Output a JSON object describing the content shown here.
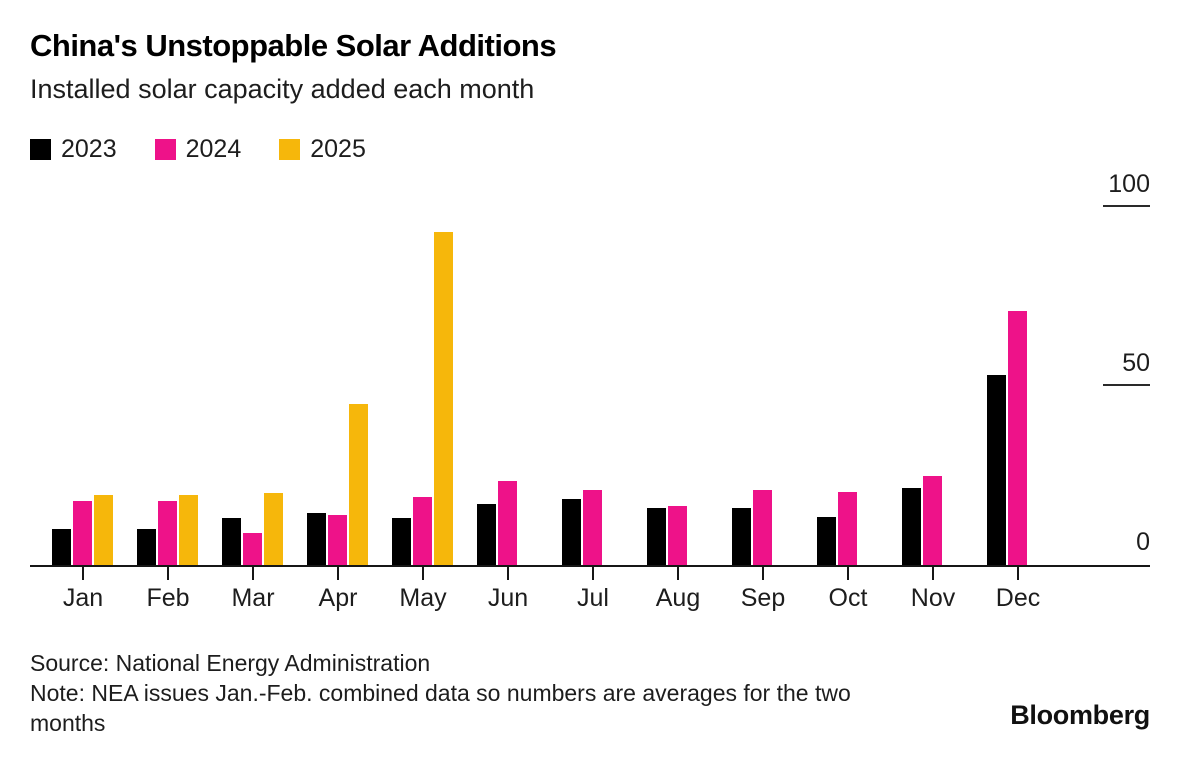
{
  "header": {
    "title": "China's Unstoppable Solar Additions",
    "subtitle": "Installed solar capacity added each month"
  },
  "legend": [
    {
      "label": "2023",
      "color": "#000000"
    },
    {
      "label": "2024",
      "color": "#ee1289"
    },
    {
      "label": "2025",
      "color": "#f6b70b"
    }
  ],
  "chart_data": {
    "type": "bar",
    "title": "China's Unstoppable Solar Additions",
    "subtitle": "Installed solar capacity added each month",
    "categories": [
      "Jan",
      "Feb",
      "Mar",
      "Apr",
      "May",
      "Jun",
      "Jul",
      "Aug",
      "Sep",
      "Oct",
      "Nov",
      "Dec"
    ],
    "series": [
      {
        "name": "2023",
        "color": "#000000",
        "values": [
          10,
          10,
          13,
          14.5,
          13,
          17,
          18.5,
          16,
          16,
          13.5,
          21.5,
          53
        ]
      },
      {
        "name": "2024",
        "color": "#ee1289",
        "values": [
          18,
          18,
          9,
          14,
          19,
          23.5,
          21,
          16.5,
          21,
          20.5,
          25,
          71
        ]
      },
      {
        "name": "2025",
        "color": "#f6b70b",
        "values": [
          19.5,
          19.5,
          20,
          45,
          93,
          null,
          null,
          null,
          null,
          null,
          null,
          null
        ]
      }
    ],
    "xlabel": "",
    "ylabel": "",
    "ylim": [
      0,
      100
    ],
    "yticks": [
      0,
      50,
      100
    ],
    "ytick_side": "right",
    "grid": false,
    "legend_position": "top-left"
  },
  "footer": {
    "source": "Source: National Energy Administration",
    "note": "Note: NEA issues Jan.-Feb. combined data so numbers are averages for the two months",
    "brand": "Bloomberg"
  }
}
